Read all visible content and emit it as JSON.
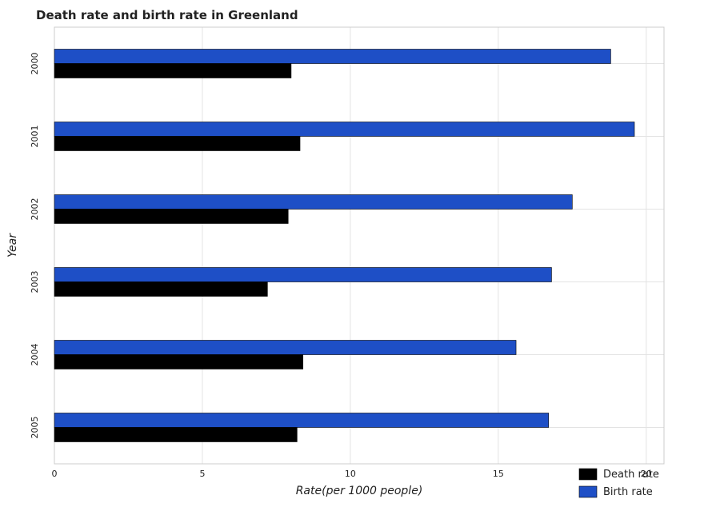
{
  "chart_data": {
    "type": "bar",
    "orientation": "horizontal",
    "title": "Death rate and birth rate in Greenland",
    "xlabel": "Rate(per 1000 people)",
    "ylabel": "Year",
    "categories": [
      "2000",
      "2001",
      "2002",
      "2003",
      "2004",
      "2005"
    ],
    "series": [
      {
        "name": "Death rate",
        "color": "#000000",
        "values": [
          8.0,
          8.3,
          7.9,
          7.2,
          8.4,
          8.2
        ]
      },
      {
        "name": "Birth rate",
        "color": "#1e4fc6",
        "values": [
          18.8,
          19.6,
          17.5,
          16.8,
          15.6,
          16.7
        ]
      }
    ],
    "xlim": [
      0,
      20.6
    ],
    "xticks": [
      0,
      5,
      10,
      15,
      20
    ],
    "xtick_labels": [
      "0",
      "5",
      "10",
      "15",
      "20"
    ],
    "grid": true,
    "legend_position": "bottom-right"
  }
}
